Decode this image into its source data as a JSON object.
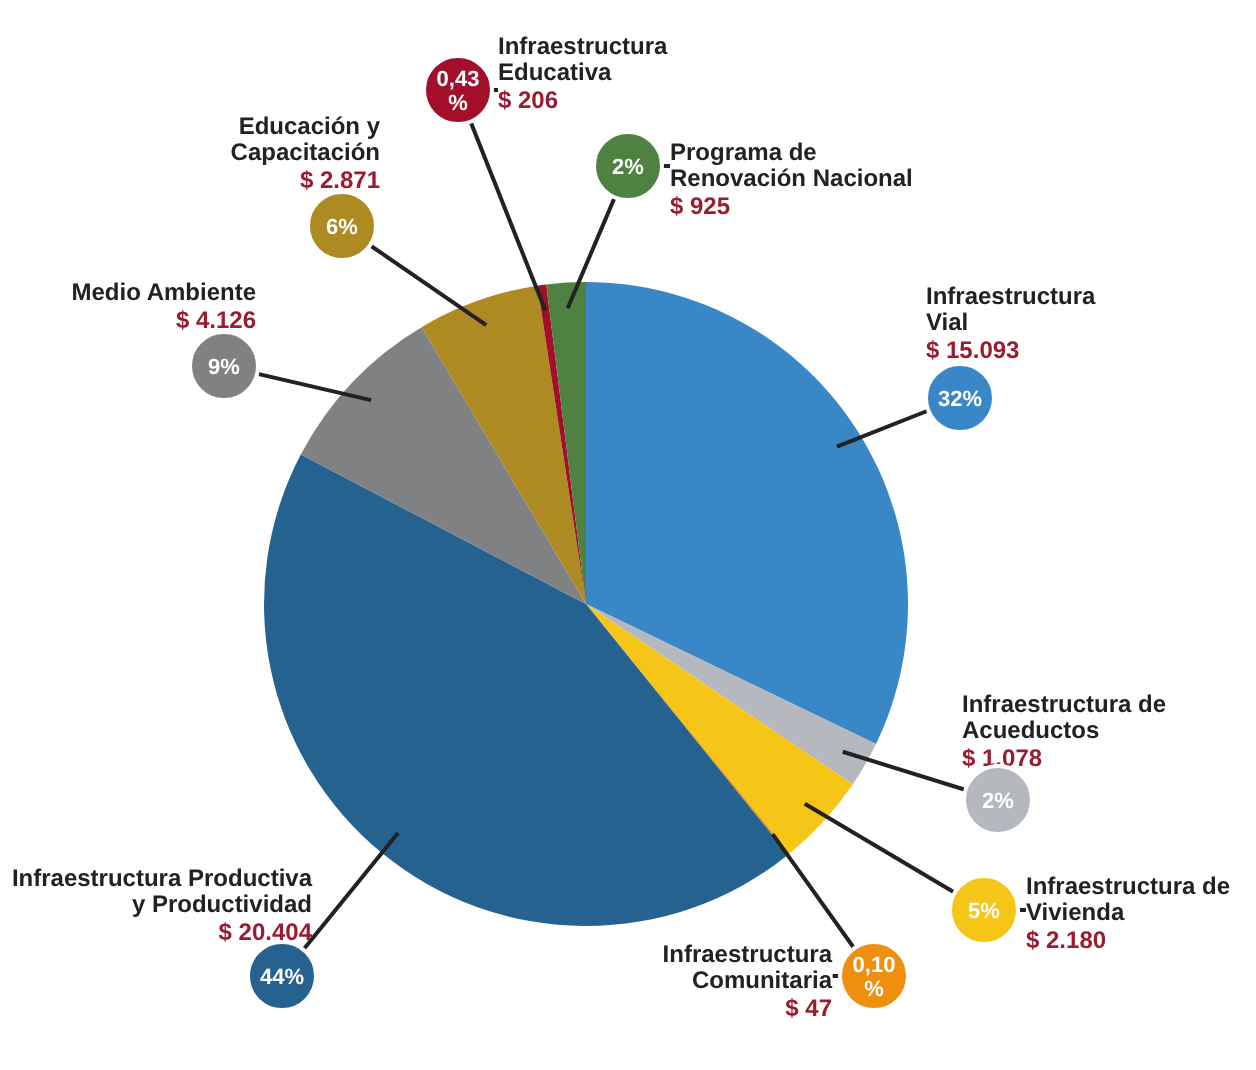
{
  "chart_data": {
    "type": "pie",
    "categories": [
      "Infraestructura\nVial",
      "Infraestructura de\nAcueductos",
      "Infraestructura de\nVivienda",
      "Infraestructura\nComunitaria",
      "Infraestructura Productiva\ny Productividad",
      "Medio Ambiente",
      "Educación y\nCapacitación",
      "Infraestructura\nEducativa",
      "Programa de\nRenovación Nacional"
    ],
    "values": [
      15093,
      1078,
      2180,
      47,
      20404,
      4126,
      2871,
      206,
      925
    ],
    "colors": [
      "#3a87c8",
      "#b6b8bf",
      "#f5c518",
      "#ef8f10",
      "#26628f",
      "#7f8183",
      "#ad8a22",
      "#a10f2b",
      "#4f8242"
    ],
    "value_labels": [
      "$ 15.093",
      "$ 1.078",
      "$ 2.180",
      "$ 47",
      "$ 20.404",
      "$ 4.126",
      "$ 2.871",
      "$ 206",
      "$ 925"
    ],
    "annotations": [
      {
        "text": "32%",
        "x": "Infraestructura\nVial"
      },
      {
        "text": "2%",
        "x": "Infraestructura de\nAcueductos"
      },
      {
        "text": "5%",
        "x": "Infraestructura de\nVivienda"
      },
      {
        "text": "0,10 %",
        "x": "Infraestructura\nComunitaria"
      },
      {
        "text": "44%",
        "x": "Infraestructura Productiva\ny Productividad"
      },
      {
        "text": "9%",
        "x": "Medio Ambiente"
      },
      {
        "text": "6%",
        "x": "Educación y\nCapacitación"
      },
      {
        "text": "0,43 %",
        "x": "Infraestructura\nEducativa"
      },
      {
        "text": "2%",
        "x": "Programa de\nRenovación Nacional"
      }
    ]
  }
}
